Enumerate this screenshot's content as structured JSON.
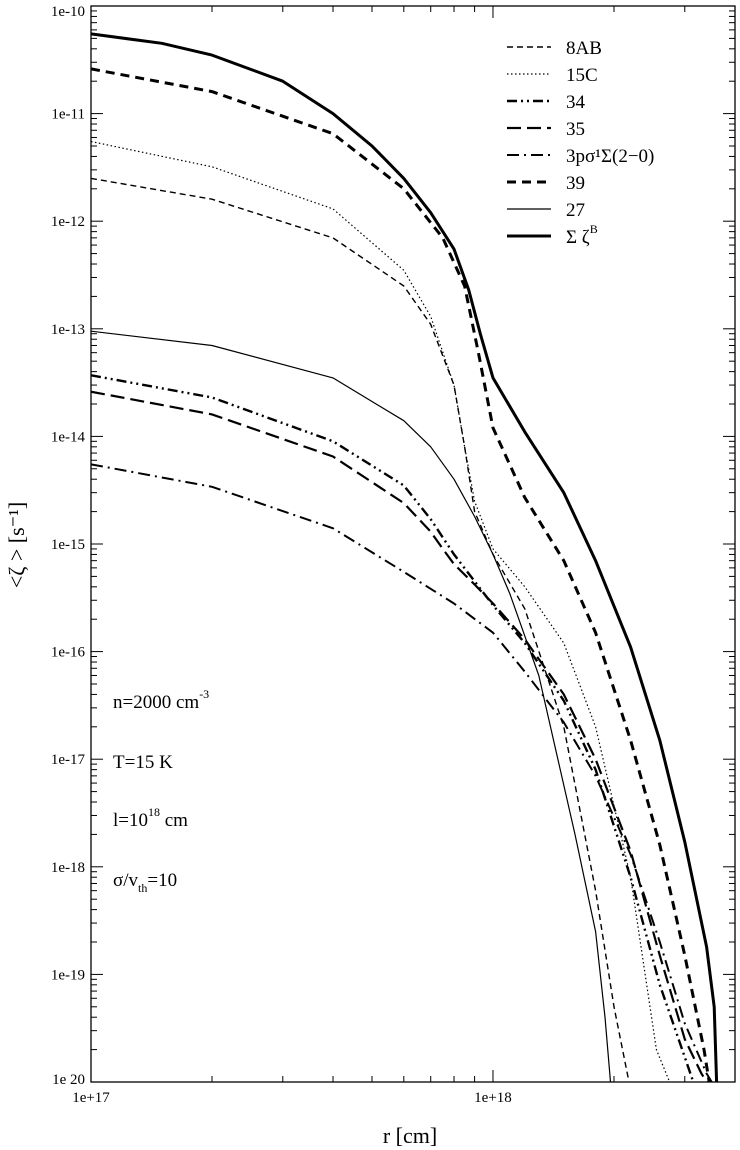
{
  "chart_data": {
    "type": "line",
    "xscale": "log",
    "yscale": "log",
    "xlim": [
      1e+17,
      4e+18
    ],
    "ylim": [
      1e-20,
      1e-10
    ],
    "xlabel": "r [cm]",
    "ylabel": "<ζ > [s⁻¹]",
    "grid": false,
    "legend_position": "top-right",
    "x_ticks": [
      {
        "value": 1e+17,
        "label": "1e+17"
      },
      {
        "value": 1e+18,
        "label": "1e+18"
      }
    ],
    "y_ticks": [
      {
        "value": 1e-10,
        "label": "1e-10"
      },
      {
        "value": 1e-11,
        "label": "1e-11"
      },
      {
        "value": 1e-12,
        "label": "1e-12"
      },
      {
        "value": 1e-13,
        "label": "1e-13"
      },
      {
        "value": 1e-14,
        "label": "1e-14"
      },
      {
        "value": 1e-15,
        "label": "1e-15"
      },
      {
        "value": 1e-16,
        "label": "1e-16"
      },
      {
        "value": 1e-17,
        "label": "1e-17"
      },
      {
        "value": 1e-18,
        "label": "1e-18"
      },
      {
        "value": 1e-19,
        "label": "1e-19"
      },
      {
        "value": 1e-20,
        "label": "1e 20"
      }
    ],
    "annotations": {
      "density": {
        "text": "n=2000 cm",
        "sup": "-3"
      },
      "temperature": {
        "text": "T=15 K"
      },
      "length_pre": "l=10",
      "length_sup": "18",
      "length_post": " cm",
      "sigma_pre": "σ/v",
      "sigma_sub": "th",
      "sigma_post": "=10"
    },
    "series": [
      {
        "name": "8AB",
        "style": "dashed",
        "width": 1.4,
        "x": [
          1e+17,
          2e+17,
          4e+17,
          6e+17,
          7e+17,
          8e+17,
          8.5e+17,
          9e+17,
          1e+18,
          1.2e+18,
          1.5e+18,
          1.8e+18,
          2e+18,
          2.18e+18
        ],
        "y": [
          2.5e-12,
          1.6e-12,
          7e-13,
          2.5e-13,
          1.1e-13,
          3e-14,
          8e-15,
          2e-15,
          8e-16,
          2.5e-16,
          2e-17,
          6e-19,
          5e-20,
          1e-20
        ]
      },
      {
        "name": "15C",
        "style": "dotted",
        "width": 1.2,
        "x": [
          1e+17,
          2e+17,
          4e+17,
          6e+17,
          7e+17,
          8e+17,
          8.5e+17,
          9e+17,
          1e+18,
          1.2e+18,
          1.5e+18,
          1.8e+18,
          2.2e+18,
          2.55e+18,
          2.75e+18
        ],
        "y": [
          5.5e-12,
          3.2e-12,
          1.3e-12,
          3.5e-13,
          1.3e-13,
          3e-14,
          8e-15,
          2.5e-15,
          9e-16,
          4e-16,
          1.2e-16,
          2e-17,
          8e-19,
          2e-20,
          1e-20
        ]
      },
      {
        "name": "34",
        "style": "dashdotdot",
        "width": 2.4,
        "x": [
          1e+17,
          2e+17,
          4e+17,
          6e+17,
          7e+17,
          7.5e+17,
          8e+17,
          9e+17,
          1e+18,
          1.2e+18,
          1.5e+18,
          1.8e+18,
          2.2e+18,
          2.6e+18,
          3e+18,
          3.15e+18
        ],
        "y": [
          3.7e-14,
          2.3e-14,
          9e-15,
          3.5e-15,
          1.7e-15,
          1.15e-15,
          8e-16,
          4.5e-16,
          2.7e-16,
          1.2e-16,
          3.5e-17,
          8e-18,
          8e-19,
          8e-20,
          1.7e-20,
          1e-20
        ]
      },
      {
        "name": "35",
        "style": "longdash",
        "width": 2.2,
        "x": [
          1e+17,
          2e+17,
          4e+17,
          6e+17,
          7e+17,
          7.5e+17,
          8e+17,
          9e+17,
          1e+18,
          1.2e+18,
          1.5e+18,
          1.8e+18,
          2.2e+18,
          2.6e+18,
          3e+18,
          3.3e+18,
          3.4e+18
        ],
        "y": [
          2.6e-14,
          1.6e-14,
          6.5e-15,
          2.4e-15,
          1.3e-15,
          9e-16,
          6.5e-16,
          4.2e-16,
          2.8e-16,
          1.3e-16,
          4e-17,
          1e-17,
          1.4e-18,
          1.5e-19,
          2.5e-20,
          1.2e-20,
          1e-20
        ]
      },
      {
        "name": "3pσ¹Σ(2−0)",
        "style": "dashdot",
        "width": 2.0,
        "x": [
          1e+17,
          2e+17,
          4e+17,
          6e+17,
          8e+17,
          1e+18,
          1.2e+18,
          1.5e+18,
          1.8e+18,
          2.2e+18,
          2.6e+18,
          3e+18,
          3.4e+18,
          3.5e+18
        ],
        "y": [
          5.5e-15,
          3.4e-15,
          1.4e-15,
          5.5e-16,
          2.8e-16,
          1.5e-16,
          6.5e-17,
          2.2e-17,
          7e-18,
          1.3e-18,
          2e-19,
          3.5e-20,
          1.2e-20,
          1e-20
        ]
      },
      {
        "name": "39",
        "style": "dashed-bold",
        "width": 3.0,
        "x": [
          1e+17,
          2e+17,
          4e+17,
          6e+17,
          7.5e+17,
          8.5e+17,
          9.2e+17,
          1e+18,
          1.2e+18,
          1.5e+18,
          1.8e+18,
          2.2e+18,
          2.6e+18,
          3e+18,
          3.35e+18,
          3.45e+18
        ],
        "y": [
          2.6e-11,
          1.6e-11,
          6.5e-12,
          2e-12,
          7e-13,
          2.5e-13,
          6e-14,
          1.2e-14,
          2.7e-15,
          7e-16,
          1.5e-16,
          1.5e-17,
          1.6e-18,
          1.5e-19,
          2e-20,
          1e-20
        ]
      },
      {
        "name": "27",
        "style": "solid",
        "width": 1.2,
        "x": [
          1e+17,
          2e+17,
          4e+17,
          6e+17,
          7e+17,
          8e+17,
          9e+17,
          1e+18,
          1.1e+18,
          1.3e+18,
          1.6e+18,
          1.8e+18,
          1.9e+18,
          1.96e+18
        ],
        "y": [
          9.5e-14,
          7e-14,
          3.5e-14,
          1.4e-14,
          8e-15,
          4e-15,
          1.8e-15,
          8e-16,
          3.5e-16,
          6e-17,
          2e-18,
          2.5e-19,
          4e-20,
          1e-20
        ]
      },
      {
        "name": "Σ ζ",
        "name_sup": "B",
        "style": "solid",
        "width": 3.0,
        "x": [
          1e+17,
          1.5e+17,
          2e+17,
          3e+17,
          4e+17,
          5e+17,
          6e+17,
          7e+17,
          8e+17,
          8.7e+17,
          9.3e+17,
          1e+18,
          1.2e+18,
          1.5e+18,
          1.8e+18,
          2.2e+18,
          2.6e+18,
          3e+18,
          3.4e+18,
          3.55e+18,
          3.6e+18
        ],
        "y": [
          5.5e-11,
          4.5e-11,
          3.5e-11,
          2e-11,
          1e-11,
          5e-12,
          2.5e-12,
          1.2e-12,
          5.5e-13,
          2.3e-13,
          9e-14,
          3.5e-14,
          1.1e-14,
          3e-15,
          7e-16,
          1.1e-16,
          1.5e-17,
          1.7e-18,
          1.8e-19,
          5e-20,
          1e-20
        ]
      }
    ]
  }
}
